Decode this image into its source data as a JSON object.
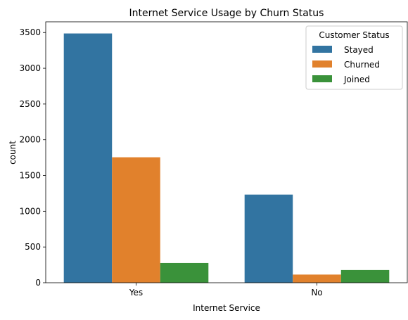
{
  "chart_data": {
    "type": "bar",
    "title": "Internet Service Usage by Churn Status",
    "xlabel": "Internet Service",
    "ylabel": "count",
    "categories": [
      "Yes",
      "No"
    ],
    "ylim": [
      0,
      3650
    ],
    "yticks": [
      0,
      500,
      1000,
      1500,
      2000,
      2500,
      3000,
      3500
    ],
    "grid": false,
    "legend": {
      "title": "Customer Status",
      "placement": "top-right"
    },
    "series": [
      {
        "name": "Stayed",
        "color": "#3274a1",
        "values": [
          3487,
          1233
        ]
      },
      {
        "name": "Churned",
        "color": "#e1812c",
        "values": [
          1755,
          114
        ]
      },
      {
        "name": "Joined",
        "color": "#3a923a",
        "values": [
          276,
          178
        ]
      }
    ]
  }
}
